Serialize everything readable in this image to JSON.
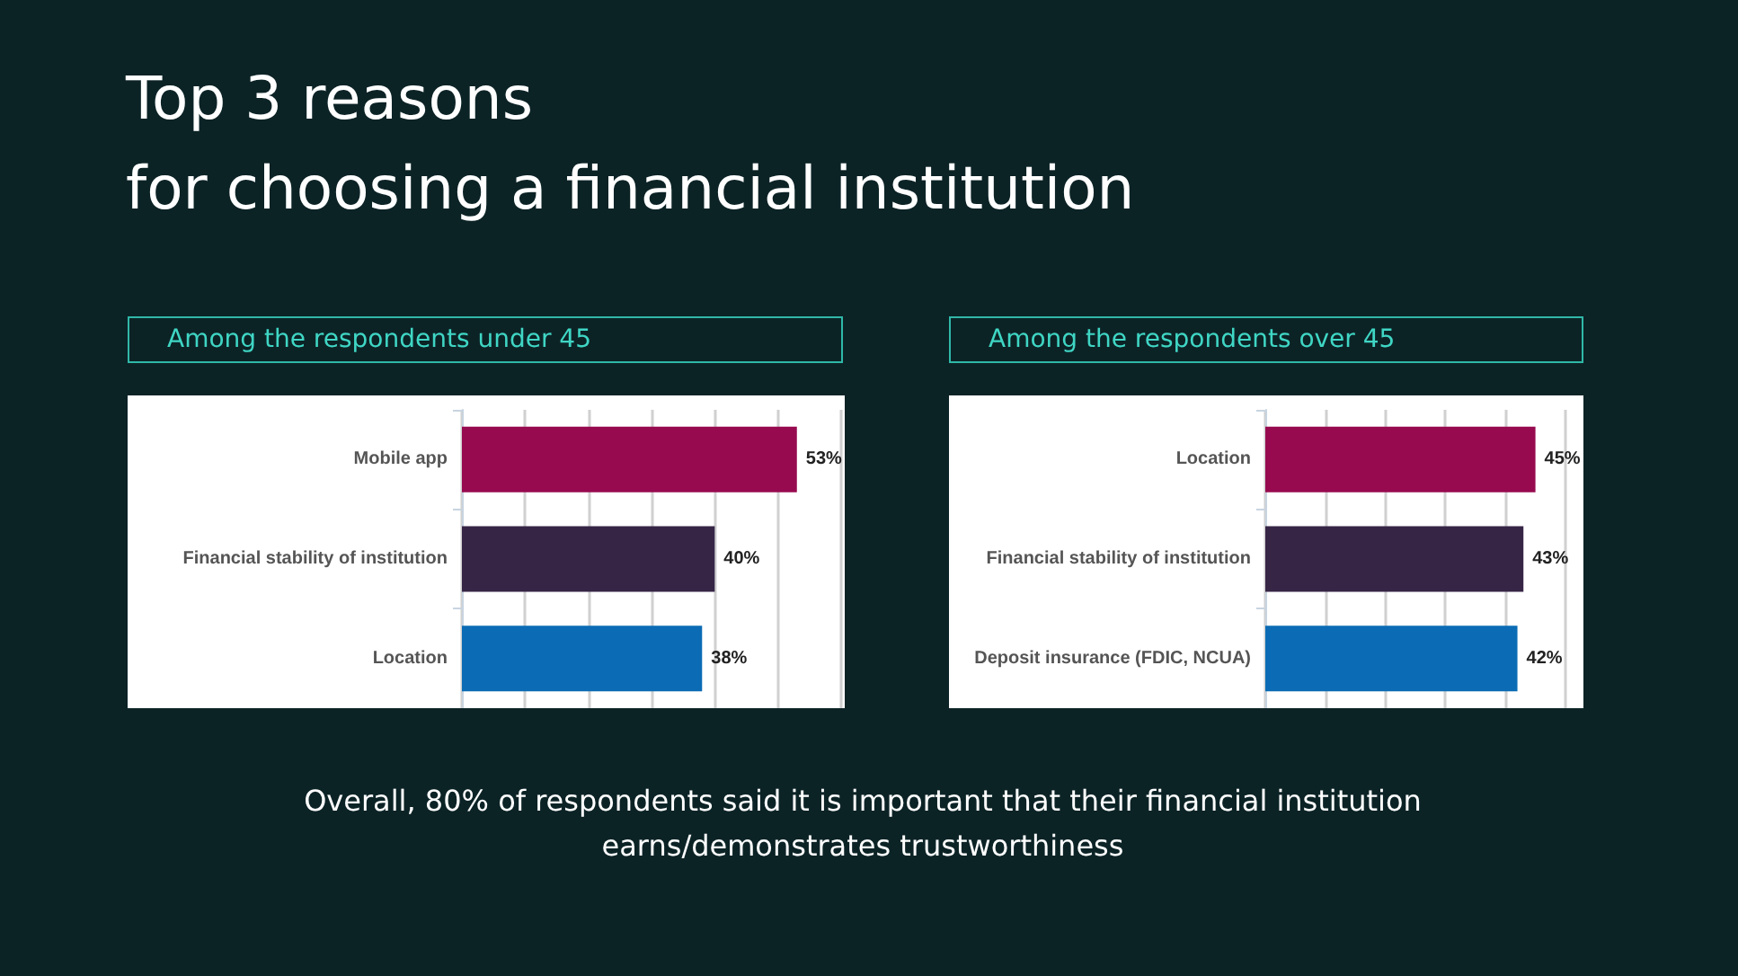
{
  "chart_data": [
    {
      "type": "bar",
      "orientation": "horizontal",
      "title": "Top 3 reasons\nfor choosing a financial institution",
      "subtitle": "Among the respondents under 45",
      "categories": [
        "Mobile app",
        "Financial stability of institution",
        "Location"
      ],
      "values": [
        53,
        40,
        38
      ],
      "value_labels": [
        "53%",
        "40%",
        "38%"
      ],
      "colors": [
        "#970a4f",
        "#372546",
        "#0b6cb5"
      ],
      "xlim": [
        0,
        60
      ],
      "xticks": [
        {
          "value": 0,
          "label": null
        },
        {
          "value": 10,
          "label": null
        },
        {
          "value": 20,
          "label": null
        },
        {
          "value": 30,
          "label": null
        },
        {
          "value": 40,
          "label": null
        },
        {
          "value": 50,
          "label": null
        },
        {
          "value": 60,
          "label": null
        }
      ],
      "grid": "x",
      "tick_labels": "y"
    },
    {
      "type": "bar",
      "orientation": "horizontal",
      "subtitle": "Among the respondents over 45",
      "annotations": [
        "Overall, 80% of respondents said it is important that their financial institution earns/demonstrates trustworthiness"
      ],
      "categories": [
        "Location",
        "Financial stability of institution",
        "Deposit insurance (FDIC, NCUA)"
      ],
      "values": [
        45,
        43,
        42
      ],
      "value_labels": [
        "45%",
        "43%",
        "42%"
      ],
      "colors": [
        "#970a4f",
        "#372546",
        "#0b6cb5"
      ],
      "xlim": [
        0,
        50
      ],
      "xticks": [
        {
          "value": 0,
          "label": null
        },
        {
          "value": 10,
          "label": null
        },
        {
          "value": 20,
          "label": null
        },
        {
          "value": 30,
          "label": null
        },
        {
          "value": 40,
          "label": null
        },
        {
          "value": 50,
          "label": null
        }
      ],
      "grid": "x",
      "tick_labels": "y"
    }
  ]
}
